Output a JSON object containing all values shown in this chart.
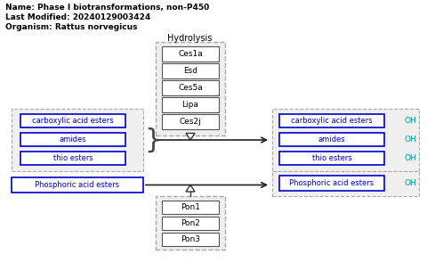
{
  "title_lines": [
    "Name: Phase I biotransformations, non-P450",
    "Last Modified: 20240129003424",
    "Organism: Rattus norvegicus"
  ],
  "hydrolysis_label": "Hydrolysis",
  "enzyme_group1": [
    "Ces1a",
    "Esd",
    "Ces5a",
    "Lipa",
    "Ces2j"
  ],
  "enzyme_group2": [
    "Pon1",
    "Pon2",
    "Pon3"
  ],
  "substrates1": [
    "carboxylic acid esters",
    "amides",
    "thio esters"
  ],
  "products1": [
    "carboxylic acid esters",
    "amides",
    "thio esters"
  ],
  "products1_oh": [
    "OH",
    "OH",
    "OH"
  ],
  "substrate2": "Phosphoric acid esters",
  "product2": "Phosphoric acid esters",
  "product2_oh": "OH",
  "box_color_blue": "#0000cc",
  "text_color_blue": "#0000cc",
  "text_color_cyan": "#009999",
  "text_color_black": "#000000",
  "bg_color": "#ffffff",
  "dashed_color": "#aaaaaa",
  "enzyme_bg": "#eeeeee",
  "group_bg": "#f0f0f0"
}
